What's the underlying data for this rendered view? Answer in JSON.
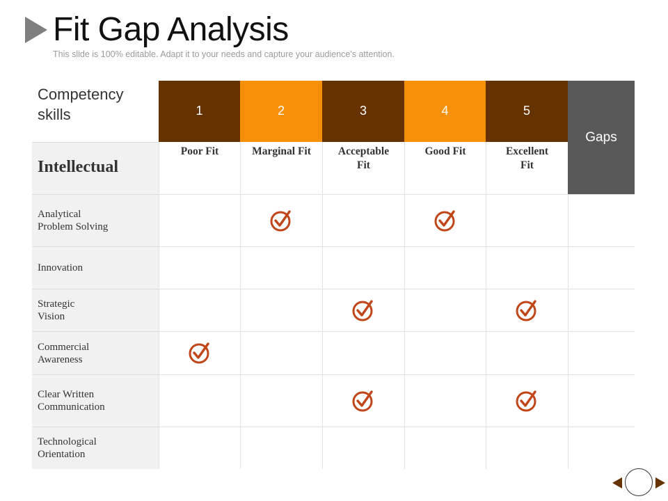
{
  "header": {
    "title": "Fit Gap Analysis",
    "subtitle": "This slide is 100% editable. Adapt it to your needs and capture your audience's attention."
  },
  "table": {
    "corner_label": "Competency\nskills",
    "scores": [
      "1",
      "2",
      "3",
      "4",
      "5"
    ],
    "fit_labels": [
      "Poor Fit",
      "Marginal Fit",
      "Acceptable\nFit",
      "Good Fit",
      "Excellent\nFit"
    ],
    "gaps_label": "Gaps",
    "section_label": "Intellectual",
    "rows": [
      {
        "label": "Analytical\nProblem Solving",
        "checks": [
          2,
          4
        ]
      },
      {
        "label": "Innovation",
        "checks": []
      },
      {
        "label": "Strategic\nVision",
        "checks": [
          3,
          5
        ]
      },
      {
        "label": "Commercial\nAwareness",
        "checks": [
          1
        ]
      },
      {
        "label": "Clear Written\nCommunication",
        "checks": [
          3,
          5
        ]
      },
      {
        "label": "Technological\nOrientation",
        "checks": []
      }
    ]
  },
  "colors": {
    "dark_brown": "#663300",
    "orange": "#F79009",
    "gaps_gray": "#595959",
    "check_color": "#C0461A"
  },
  "icons": {
    "title_marker": "triangle-right-icon",
    "check": "checkmark-circle-icon",
    "nav_prev": "triangle-left-icon",
    "nav_home": "circle-icon",
    "nav_next": "triangle-right-icon"
  }
}
